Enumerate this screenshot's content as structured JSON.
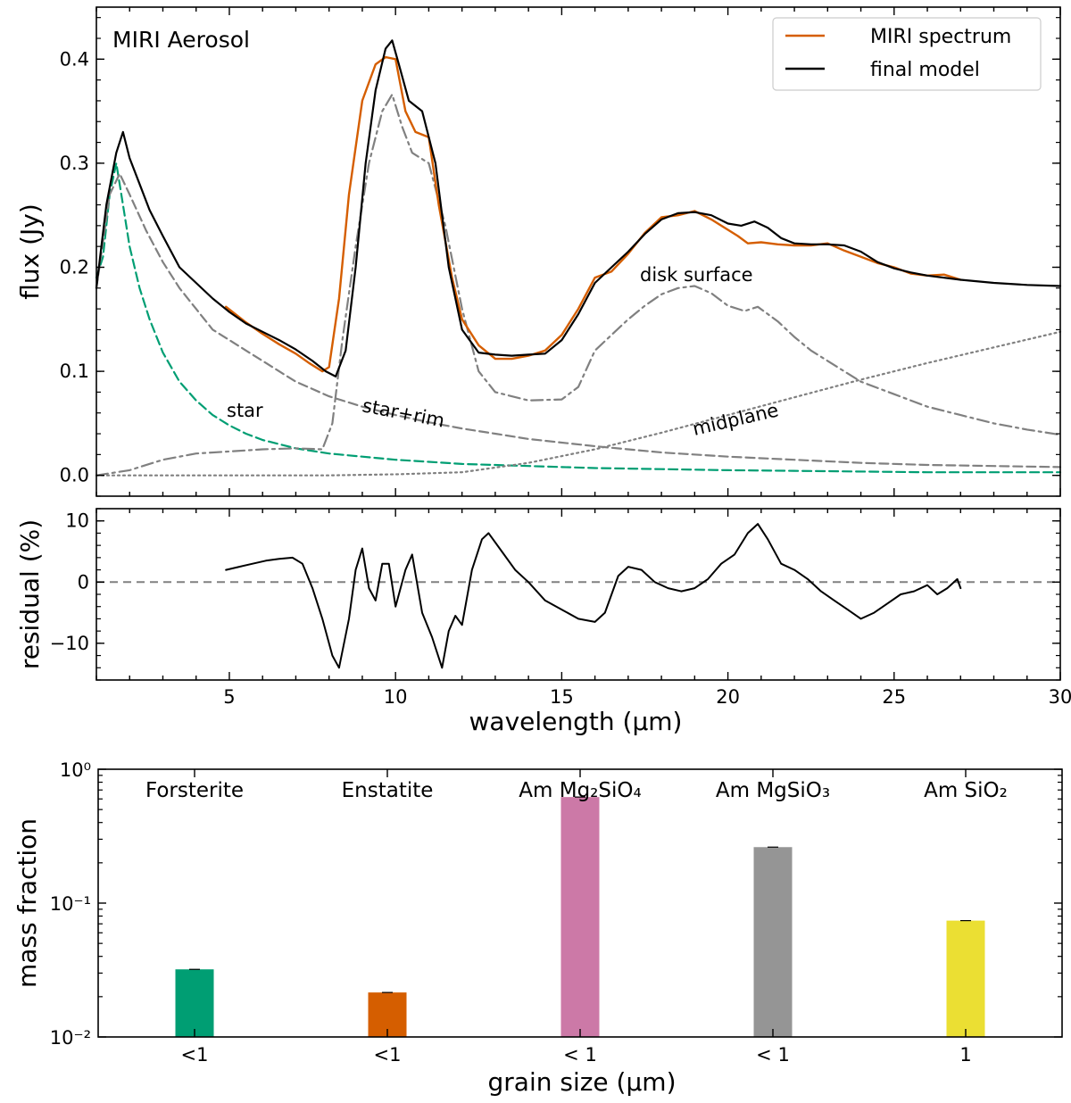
{
  "figure_title": "MIRI Aerosol",
  "chart_data": [
    {
      "id": "spectrum",
      "type": "line",
      "title": "MIRI Aerosol",
      "xlabel": "wavelength (μm)",
      "ylabel": "flux (Jy)",
      "xlim": [
        1,
        30
      ],
      "ylim": [
        -0.02,
        0.45
      ],
      "xticks": [
        5,
        10,
        15,
        20,
        25,
        30
      ],
      "yticks": [
        0.0,
        0.1,
        0.2,
        0.3,
        0.4
      ],
      "ytick_labels": [
        "0.0",
        "0.1",
        "0.2",
        "0.3",
        "0.4"
      ],
      "legend": {
        "position": "top-right",
        "entries": [
          {
            "label": "MIRI spectrum",
            "color": "#d55e00"
          },
          {
            "label": "final model",
            "color": "#000000"
          }
        ]
      },
      "annotations": [
        {
          "text": "star",
          "x": 5.7,
          "y": 0.058,
          "color": "#009e73",
          "rotation": 0
        },
        {
          "text": "star+rim",
          "x": 11.0,
          "y": 0.056,
          "color": "#808080",
          "rotation": 11
        },
        {
          "text": "disk surface",
          "x": 19.8,
          "y": 0.191,
          "color": "#808080",
          "rotation": 0
        },
        {
          "text": "midplane",
          "x": 22.4,
          "y": 0.055,
          "color": "#808080",
          "rotation": -13
        }
      ],
      "series": [
        {
          "name": "MIRI spectrum",
          "color": "#d55e00",
          "style": "solid",
          "width": 2.4,
          "x": [
            4.9,
            5.5,
            6.0,
            6.5,
            7.0,
            7.4,
            7.8,
            8.0,
            8.3,
            8.6,
            9.0,
            9.4,
            9.7,
            10.0,
            10.3,
            10.6,
            11.0,
            11.3,
            11.7,
            12.0,
            12.5,
            13.0,
            13.5,
            14.0,
            14.5,
            15.0,
            15.5,
            16.0,
            16.5,
            17.0,
            17.5,
            18.0,
            18.5,
            19.0,
            19.5,
            20.0,
            20.3,
            20.6,
            21.0,
            21.5,
            22.0,
            22.5,
            23.0,
            23.5,
            24.0,
            24.5,
            25.0,
            25.5,
            26.0,
            26.5,
            27.0
          ],
          "y": [
            0.162,
            0.147,
            0.136,
            0.126,
            0.117,
            0.108,
            0.1,
            0.104,
            0.17,
            0.27,
            0.36,
            0.395,
            0.402,
            0.4,
            0.35,
            0.33,
            0.325,
            0.26,
            0.19,
            0.15,
            0.125,
            0.112,
            0.112,
            0.115,
            0.12,
            0.135,
            0.16,
            0.19,
            0.196,
            0.213,
            0.233,
            0.248,
            0.25,
            0.254,
            0.246,
            0.236,
            0.23,
            0.223,
            0.224,
            0.222,
            0.221,
            0.221,
            0.223,
            0.216,
            0.21,
            0.204,
            0.2,
            0.194,
            0.192,
            0.193,
            0.188
          ]
        },
        {
          "name": "final model",
          "color": "#000000",
          "style": "solid",
          "width": 2.2,
          "x": [
            1.0,
            1.3,
            1.6,
            1.8,
            2.0,
            2.3,
            2.6,
            3.0,
            3.5,
            4.0,
            4.5,
            5.0,
            5.5,
            6.0,
            6.5,
            7.0,
            7.5,
            7.9,
            8.2,
            8.5,
            8.8,
            9.1,
            9.4,
            9.7,
            9.9,
            10.1,
            10.4,
            10.8,
            11.2,
            11.6,
            12.0,
            12.5,
            13.0,
            13.5,
            14.0,
            14.5,
            15.0,
            15.5,
            16.0,
            16.5,
            17.0,
            17.5,
            18.0,
            18.5,
            19.0,
            19.5,
            20.0,
            20.4,
            20.8,
            21.2,
            21.6,
            22.0,
            22.5,
            23.0,
            23.5,
            24.0,
            24.5,
            25.0,
            25.5,
            26.0,
            27.0,
            28.0,
            29.0,
            30.0
          ],
          "y": [
            0.18,
            0.26,
            0.31,
            0.33,
            0.305,
            0.28,
            0.255,
            0.23,
            0.2,
            0.185,
            0.17,
            0.157,
            0.146,
            0.138,
            0.13,
            0.121,
            0.11,
            0.1,
            0.095,
            0.12,
            0.2,
            0.3,
            0.37,
            0.41,
            0.418,
            0.395,
            0.36,
            0.35,
            0.3,
            0.2,
            0.14,
            0.118,
            0.116,
            0.115,
            0.116,
            0.117,
            0.13,
            0.155,
            0.185,
            0.2,
            0.215,
            0.232,
            0.246,
            0.252,
            0.253,
            0.25,
            0.242,
            0.24,
            0.244,
            0.238,
            0.228,
            0.223,
            0.222,
            0.222,
            0.221,
            0.215,
            0.205,
            0.199,
            0.195,
            0.192,
            0.188,
            0.185,
            0.183,
            0.182
          ]
        },
        {
          "name": "star",
          "color": "#009e73",
          "style": "dashed",
          "width": 2.2,
          "x": [
            1.0,
            1.2,
            1.4,
            1.6,
            1.8,
            2.0,
            2.3,
            2.6,
            3.0,
            3.5,
            4.0,
            4.5,
            5.0,
            5.5,
            6.0,
            6.5,
            7.0,
            8.0,
            9.0,
            10.0,
            11.0,
            12.0,
            14.0,
            16.0,
            18.0,
            20.0,
            23.0,
            26.0,
            30.0
          ],
          "y": [
            0.19,
            0.21,
            0.27,
            0.3,
            0.26,
            0.22,
            0.18,
            0.15,
            0.118,
            0.09,
            0.072,
            0.058,
            0.048,
            0.04,
            0.034,
            0.03,
            0.026,
            0.021,
            0.018,
            0.015,
            0.013,
            0.011,
            0.009,
            0.007,
            0.006,
            0.005,
            0.004,
            0.003,
            0.003
          ]
        },
        {
          "name": "star+rim",
          "color": "#808080",
          "style": "dashed",
          "width": 2.2,
          "x": [
            1.0,
            1.4,
            1.7,
            2.0,
            2.5,
            3.0,
            3.5,
            4.0,
            4.5,
            5.0,
            5.5,
            6.0,
            6.5,
            7.0,
            8.0,
            9.0,
            10.0,
            11.0,
            12.0,
            13.0,
            14.0,
            16.0,
            18.0,
            20.0,
            22.0,
            24.0,
            26.0,
            28.0,
            30.0
          ],
          "y": [
            0.18,
            0.27,
            0.29,
            0.27,
            0.235,
            0.205,
            0.18,
            0.16,
            0.14,
            0.13,
            0.12,
            0.11,
            0.1,
            0.09,
            0.076,
            0.066,
            0.058,
            0.051,
            0.045,
            0.04,
            0.035,
            0.028,
            0.022,
            0.018,
            0.015,
            0.012,
            0.01,
            0.009,
            0.008
          ]
        },
        {
          "name": "disk surface",
          "color": "#808080",
          "style": "dashdot",
          "width": 2.2,
          "x": [
            1.0,
            2.0,
            3.0,
            4.0,
            5.0,
            6.0,
            7.0,
            7.8,
            8.1,
            8.4,
            8.8,
            9.2,
            9.6,
            9.9,
            10.2,
            10.5,
            11.0,
            11.5,
            12.0,
            12.5,
            13.0,
            14.0,
            15.0,
            15.5,
            16.0,
            16.5,
            17.0,
            17.5,
            18.0,
            18.5,
            19.0,
            19.5,
            20.0,
            20.5,
            20.9,
            21.5,
            22.0,
            22.5,
            23.0,
            23.5,
            24.0,
            25.0,
            26.0,
            27.0,
            28.0,
            29.0,
            30.0
          ],
          "y": [
            0.0,
            0.005,
            0.015,
            0.021,
            0.023,
            0.025,
            0.026,
            0.025,
            0.05,
            0.13,
            0.22,
            0.3,
            0.35,
            0.366,
            0.335,
            0.31,
            0.3,
            0.24,
            0.16,
            0.1,
            0.08,
            0.072,
            0.073,
            0.085,
            0.12,
            0.135,
            0.15,
            0.163,
            0.174,
            0.18,
            0.182,
            0.175,
            0.163,
            0.158,
            0.162,
            0.148,
            0.133,
            0.12,
            0.11,
            0.1,
            0.09,
            0.078,
            0.066,
            0.058,
            0.05,
            0.044,
            0.039
          ]
        },
        {
          "name": "midplane",
          "color": "#808080",
          "style": "dotted",
          "width": 2.2,
          "x": [
            1.0,
            4.0,
            8.0,
            10.0,
            12.0,
            14.0,
            16.0,
            18.0,
            20.0,
            22.0,
            24.0,
            26.0,
            28.0,
            30.0
          ],
          "y": [
            0.0,
            0.0,
            0.0,
            0.001,
            0.003,
            0.012,
            0.025,
            0.041,
            0.058,
            0.075,
            0.092,
            0.108,
            0.123,
            0.138
          ]
        }
      ]
    },
    {
      "id": "residual",
      "type": "line",
      "xlabel": "wavelength (μm)",
      "ylabel": "residual (%)",
      "xlim": [
        1,
        30
      ],
      "ylim": [
        -16,
        12
      ],
      "xticks": [
        5,
        10,
        15,
        20,
        25,
        30
      ],
      "xtick_labels": [
        "5",
        "10",
        "15",
        "20",
        "25",
        "30"
      ],
      "yticks": [
        -10,
        0,
        10
      ],
      "ytick_labels": [
        "−10",
        "0",
        "10"
      ],
      "reference_line": 0,
      "series": [
        {
          "name": "residual",
          "color": "#000000",
          "style": "solid",
          "width": 2,
          "x": [
            4.9,
            5.3,
            5.7,
            6.1,
            6.5,
            6.9,
            7.2,
            7.5,
            7.8,
            8.1,
            8.3,
            8.6,
            8.8,
            9.0,
            9.2,
            9.4,
            9.6,
            9.8,
            10.0,
            10.3,
            10.5,
            10.8,
            11.1,
            11.4,
            11.6,
            11.8,
            12.0,
            12.3,
            12.6,
            12.8,
            13.2,
            13.6,
            14.0,
            14.5,
            15.0,
            15.5,
            16.0,
            16.3,
            16.7,
            17.0,
            17.4,
            17.8,
            18.2,
            18.6,
            19.0,
            19.4,
            19.8,
            20.2,
            20.6,
            20.9,
            21.2,
            21.6,
            22.0,
            22.4,
            22.8,
            23.2,
            23.6,
            24.0,
            24.4,
            24.8,
            25.2,
            25.6,
            26.0,
            26.3,
            26.6,
            26.9,
            27.0
          ],
          "y": [
            2.0,
            2.5,
            3.0,
            3.5,
            3.8,
            4.0,
            3.0,
            -1.0,
            -6.0,
            -12.0,
            -14.0,
            -6.0,
            2.0,
            5.5,
            -1.0,
            -3.0,
            3.0,
            3.0,
            -4.0,
            2.0,
            4.5,
            -5.0,
            -9.0,
            -14.0,
            -8.0,
            -5.5,
            -7.0,
            2.0,
            7.0,
            8.0,
            5.0,
            2.0,
            0.0,
            -3.0,
            -4.5,
            -6.0,
            -6.5,
            -5.0,
            1.0,
            2.5,
            2.0,
            0.0,
            -1.0,
            -1.5,
            -1.0,
            0.5,
            3.0,
            4.5,
            8.0,
            9.5,
            7.0,
            3.0,
            2.0,
            0.5,
            -1.5,
            -3.0,
            -4.5,
            -6.0,
            -5.0,
            -3.5,
            -2.0,
            -1.5,
            -0.5,
            -2.0,
            -1.0,
            0.5,
            -1.0
          ]
        }
      ]
    },
    {
      "id": "mass_fraction",
      "type": "bar",
      "xlabel": "grain size (μm)",
      "ylabel": "mass fraction",
      "yscale": "log",
      "ylim": [
        0.01,
        1.0
      ],
      "ytick_labels": [
        "10⁻²",
        "10⁻¹",
        "10⁰"
      ],
      "categories": [
        "Forsterite",
        "Enstatite",
        "Am Mg₂SiO₄",
        "Am MgSiO₃",
        "Am SiO₂"
      ],
      "grain_sizes": [
        "<1",
        "<1",
        "< 1",
        "< 1",
        "1"
      ],
      "values": [
        0.032,
        0.0215,
        0.62,
        0.262,
        0.074
      ],
      "colors": [
        "#009e73",
        "#d55e00",
        "#cc79a7",
        "#959595",
        "#ebdf33"
      ]
    }
  ]
}
